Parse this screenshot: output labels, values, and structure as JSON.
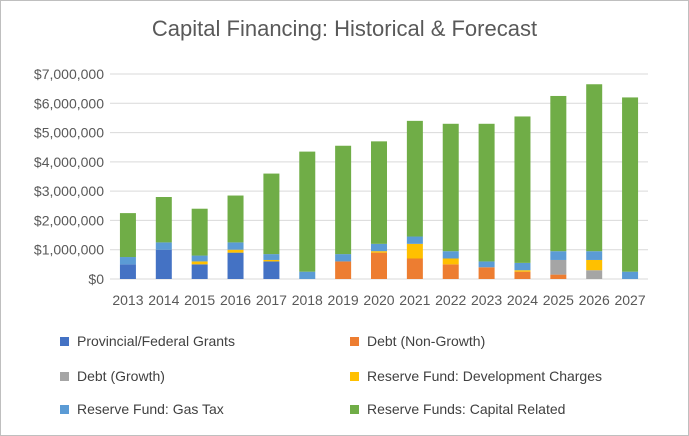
{
  "chart_data": {
    "type": "bar",
    "stacked": true,
    "title": "Capital Financing: Historical & Forecast",
    "xlabel": "",
    "ylabel": "",
    "ylim": [
      0,
      7000000
    ],
    "yticks": [
      0,
      1000000,
      2000000,
      3000000,
      4000000,
      5000000,
      6000000,
      7000000
    ],
    "ytick_labels": [
      "$0",
      "$1,000,000",
      "$2,000,000",
      "$3,000,000",
      "$4,000,000",
      "$5,000,000",
      "$6,000,000",
      "$7,000,000"
    ],
    "grid": true,
    "legend_position": "bottom",
    "categories": [
      "2013",
      "2014",
      "2015",
      "2016",
      "2017",
      "2018",
      "2019",
      "2020",
      "2021",
      "2022",
      "2023",
      "2024",
      "2025",
      "2026",
      "2027"
    ],
    "series": [
      {
        "name": "Provincial/Federal Grants",
        "color": "#4472c4",
        "values": [
          500000,
          1000000,
          500000,
          900000,
          600000,
          0,
          0,
          0,
          0,
          0,
          0,
          0,
          0,
          0,
          0
        ]
      },
      {
        "name": "Debt (Non-Growth)",
        "color": "#ed7d31",
        "values": [
          0,
          0,
          0,
          0,
          0,
          0,
          600000,
          900000,
          700000,
          500000,
          400000,
          250000,
          150000,
          0,
          0
        ]
      },
      {
        "name": "Debt (Growth)",
        "color": "#a5a5a5",
        "values": [
          0,
          0,
          0,
          0,
          0,
          0,
          0,
          0,
          0,
          0,
          0,
          0,
          500000,
          300000,
          0
        ]
      },
      {
        "name": "Reserve Fund: Development Charges",
        "color": "#ffc000",
        "values": [
          0,
          0,
          100000,
          100000,
          50000,
          0,
          0,
          50000,
          500000,
          200000,
          0,
          50000,
          0,
          350000,
          0
        ]
      },
      {
        "name": "Reserve Fund: Gas Tax",
        "color": "#5b9bd5",
        "values": [
          250000,
          250000,
          200000,
          250000,
          200000,
          250000,
          250000,
          250000,
          250000,
          250000,
          200000,
          250000,
          300000,
          300000,
          250000
        ]
      },
      {
        "name": "Reserve Funds: Capital Related",
        "color": "#70ad47",
        "values": [
          1500000,
          1550000,
          1600000,
          1600000,
          2750000,
          4100000,
          3700000,
          3500000,
          3950000,
          4350000,
          4700000,
          5000000,
          5300000,
          5700000,
          5950000
        ]
      }
    ]
  }
}
